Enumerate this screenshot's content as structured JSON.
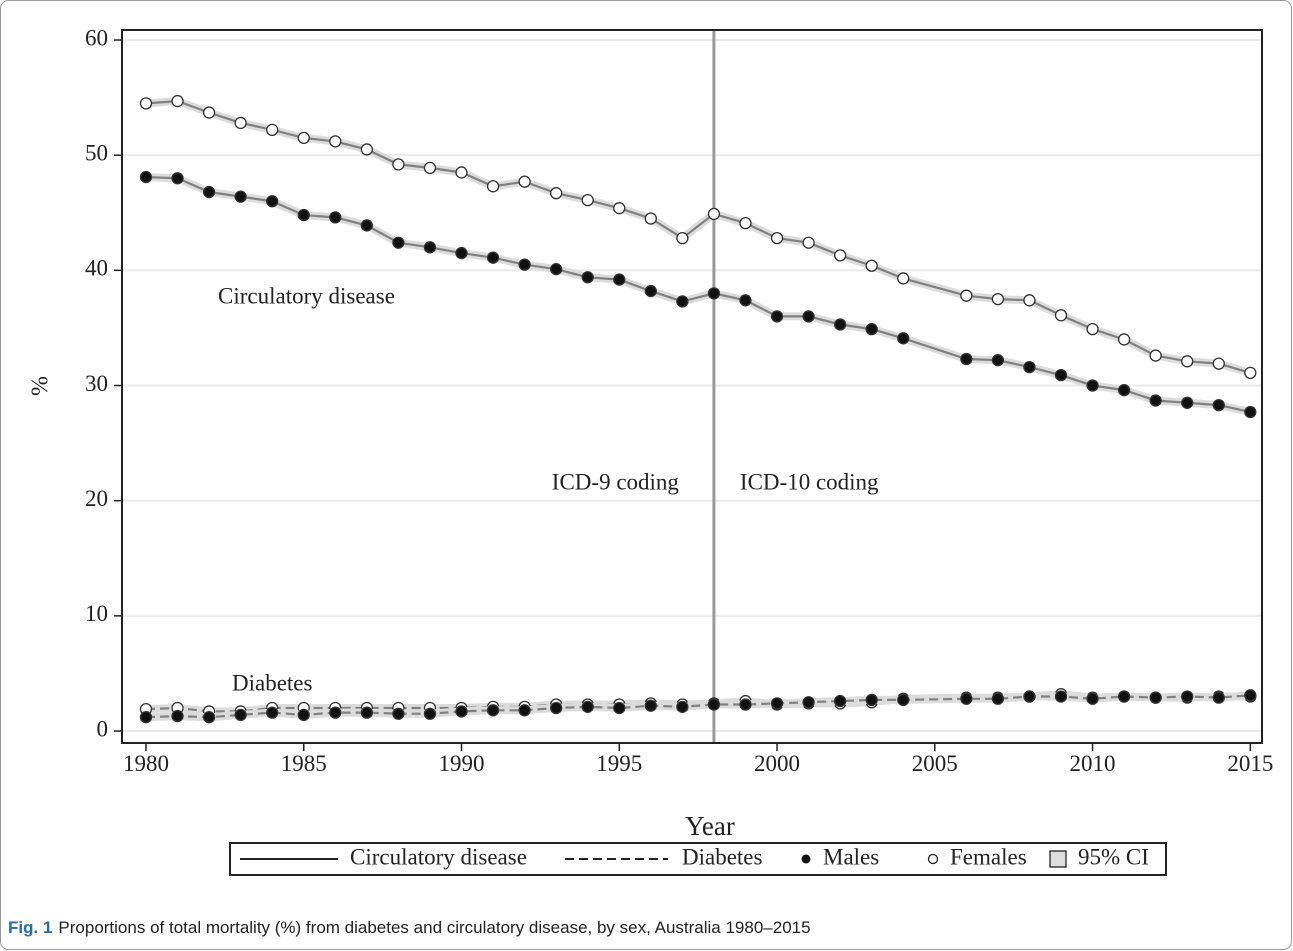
{
  "chart_data": {
    "type": "line",
    "xlabel": "Year",
    "ylabel": "%",
    "x": [
      1980,
      1981,
      1982,
      1983,
      1984,
      1985,
      1986,
      1987,
      1988,
      1989,
      1990,
      1991,
      1992,
      1993,
      1994,
      1995,
      1996,
      1997,
      1998,
      1999,
      2000,
      2001,
      2002,
      2003,
      2004,
      2006,
      2007,
      2008,
      2009,
      2010,
      2011,
      2012,
      2013,
      2014,
      2015
    ],
    "series": [
      {
        "line": "solid",
        "marker": "open",
        "color": "#808080",
        "values": [
          54.5,
          54.7,
          53.7,
          52.8,
          52.2,
          51.5,
          51.2,
          50.5,
          49.2,
          48.9,
          48.5,
          47.3,
          47.7,
          46.7,
          46.1,
          45.4,
          44.5,
          42.8,
          44.9,
          44.1,
          42.8,
          42.4,
          41.3,
          40.4,
          39.3,
          37.8,
          37.5,
          37.4,
          36.1,
          34.9,
          34.0,
          32.6,
          32.1,
          31.9,
          31.1
        ]
      },
      {
        "line": "solid",
        "marker": "filled",
        "color": "#808080",
        "values": [
          48.1,
          48.0,
          46.8,
          46.4,
          46.0,
          44.8,
          44.6,
          43.9,
          42.4,
          42.0,
          41.5,
          41.1,
          40.5,
          40.1,
          39.4,
          39.2,
          38.2,
          37.3,
          38.0,
          37.4,
          36.0,
          36.0,
          35.3,
          34.9,
          34.1,
          32.3,
          32.2,
          31.6,
          30.9,
          30.0,
          29.6,
          28.7,
          28.5,
          28.3,
          27.7
        ]
      },
      {
        "line": "dashed",
        "marker": "open",
        "color": "#808080",
        "values": [
          1.9,
          2.0,
          1.7,
          1.7,
          2.0,
          2.0,
          2.0,
          2.0,
          2.0,
          2.0,
          2.0,
          2.1,
          2.1,
          2.3,
          2.3,
          2.3,
          2.4,
          2.3,
          2.4,
          2.6,
          2.3,
          2.4,
          2.4,
          2.5,
          2.8,
          2.9,
          2.9,
          3.0,
          3.2,
          2.9,
          3.0,
          2.9,
          2.9,
          3.0,
          3.0
        ]
      },
      {
        "line": "dashed",
        "marker": "filled",
        "color": "#808080",
        "values": [
          1.2,
          1.3,
          1.2,
          1.4,
          1.6,
          1.4,
          1.6,
          1.6,
          1.5,
          1.5,
          1.7,
          1.8,
          1.8,
          2.0,
          2.1,
          2.0,
          2.2,
          2.1,
          2.3,
          2.3,
          2.4,
          2.5,
          2.6,
          2.7,
          2.7,
          2.8,
          2.8,
          3.0,
          3.0,
          2.8,
          3.0,
          2.9,
          3.0,
          2.9,
          3.1
        ]
      }
    ],
    "xlim": [
      1979.24,
      2015.37
    ],
    "ylim": [
      -1.04,
      60.87
    ],
    "xticks": [
      1980,
      1985,
      1990,
      1995,
      2000,
      2005,
      2010,
      2015
    ],
    "yticks": [
      0,
      10,
      20,
      30,
      40,
      50,
      60
    ],
    "grid": true,
    "vline": 1998,
    "annotations": {
      "circulatory": "Circulatory disease",
      "diabetes": "Diabetes",
      "before": "ICD-9 coding",
      "after": "ICD-10 coding"
    },
    "legend": [
      {
        "symbol": "solid-line",
        "label": "Circulatory disease"
      },
      {
        "symbol": "dashed-line",
        "label": "Diabetes"
      },
      {
        "symbol": "filled-dot",
        "label": "Males"
      },
      {
        "symbol": "open-dot",
        "label": "Females"
      },
      {
        "symbol": "grey-square",
        "label": "95% CI"
      }
    ],
    "caption_label": "Fig. 1",
    "caption": "Proportions of total mortality (%) from diabetes and circulatory disease, by sex, Australia 1980–2015"
  }
}
